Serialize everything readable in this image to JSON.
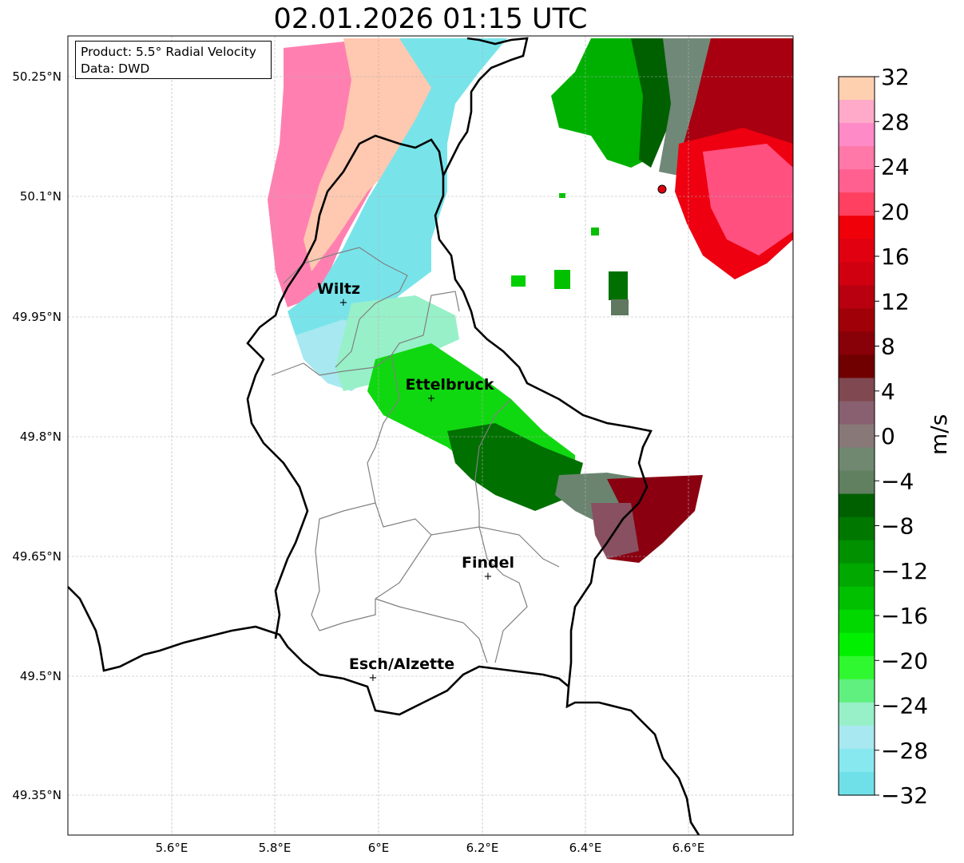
{
  "title": "02.01.2026 01:15 UTC",
  "info": {
    "product": "Product: 5.5° Radial Velocity",
    "source": "Data: DWD"
  },
  "axes": {
    "lon_ticks": [
      "5.6°E",
      "5.8°E",
      "6°E",
      "6.2°E",
      "6.4°E",
      "6.6°E"
    ],
    "lat_ticks": [
      "50.25°N",
      "50.1°N",
      "49.95°N",
      "49.8°N",
      "49.65°N",
      "49.5°N",
      "49.35°N"
    ]
  },
  "cities": [
    {
      "name": "Wiltz",
      "lon": 5.93,
      "lat": 49.97
    },
    {
      "name": "Ettelbruck",
      "lon": 6.1,
      "lat": 49.85
    },
    {
      "name": "Findel",
      "lon": 6.21,
      "lat": 49.627
    },
    {
      "name": "Esch/Alzette",
      "lon": 5.99,
      "lat": 49.5
    }
  ],
  "colorbar": {
    "unit": "m/s",
    "min": -32,
    "max": 32,
    "tick_labels": [
      "32",
      "28",
      "24",
      "20",
      "16",
      "12",
      "8",
      "4",
      "0",
      "−4",
      "−8",
      "−12",
      "−16",
      "−20",
      "−24",
      "−28",
      "−32"
    ],
    "colors_top_to_bottom": [
      "#ffd0b0",
      "#ffaac8",
      "#ff8ac8",
      "#ff78a8",
      "#ff6090",
      "#ff4060",
      "#f00008",
      "#e00010",
      "#d00010",
      "#b80010",
      "#a00008",
      "#880008",
      "#700000",
      "#804850",
      "#886070",
      "#887878",
      "#708870",
      "#608060",
      "#006000",
      "#007800",
      "#009000",
      "#00a800",
      "#00c000",
      "#00d800",
      "#00f000",
      "#30f830",
      "#60f080",
      "#98f0c8",
      "#a8e8f0",
      "#88e8f0",
      "#70e0e8"
    ]
  }
}
